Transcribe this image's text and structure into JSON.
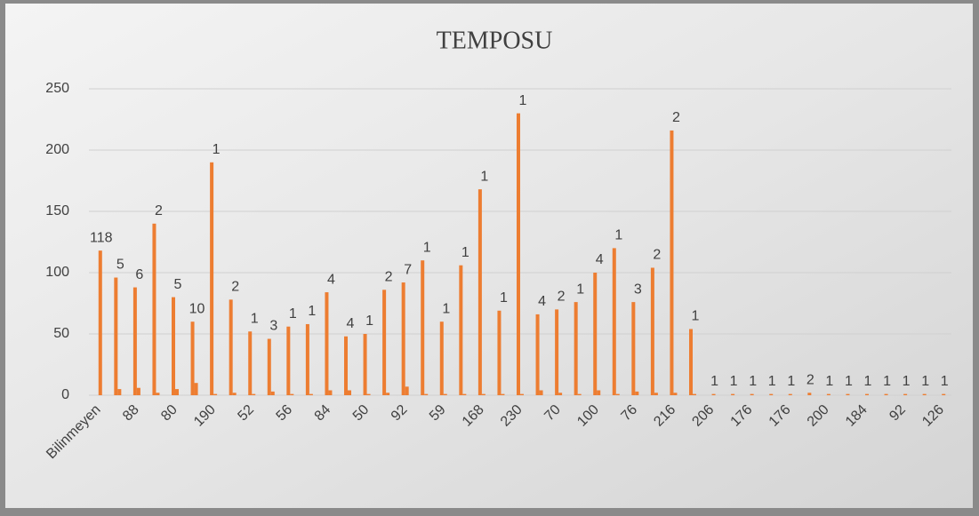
{
  "chart_data": {
    "type": "bar",
    "title": "TEMPOSU",
    "categories": [
      "Bilinmeyen",
      null,
      "88",
      null,
      "80",
      null,
      "190",
      null,
      "52",
      null,
      "56",
      null,
      "84",
      null,
      "50",
      null,
      "92",
      null,
      "59",
      null,
      "168",
      null,
      "230",
      null,
      "70",
      null,
      "100",
      null,
      "76",
      null,
      "216",
      null,
      "206",
      null,
      "176",
      null,
      "176",
      null,
      "200",
      null,
      "184",
      null,
      "92",
      null,
      "126"
    ],
    "series": [
      {
        "color": "#ed7d31",
        "values": [
          null,
          96,
          88,
          140,
          80,
          60,
          190,
          78,
          52,
          46,
          56,
          58,
          84,
          48,
          50,
          86,
          92,
          110,
          60,
          106,
          168,
          69,
          230,
          66,
          70,
          76,
          100,
          120,
          76,
          104,
          216,
          54,
          null,
          null,
          null,
          null,
          null,
          null,
          null,
          null,
          null,
          null,
          null,
          null,
          null
        ]
      },
      {
        "color": "#ed7d31",
        "values": [
          118,
          5,
          6,
          2,
          5,
          10,
          1,
          2,
          1,
          3,
          1,
          1,
          4,
          4,
          1,
          2,
          7,
          1,
          1,
          1,
          1,
          1,
          1,
          4,
          2,
          1,
          4,
          1,
          3,
          2,
          2,
          1,
          1,
          1,
          1,
          1,
          1,
          2,
          1,
          1,
          1,
          1,
          1,
          1,
          1
        ]
      }
    ],
    "ylim": [
      0,
      250
    ],
    "yticks": [
      0,
      50,
      100,
      150,
      200,
      250
    ],
    "grid": true
  }
}
